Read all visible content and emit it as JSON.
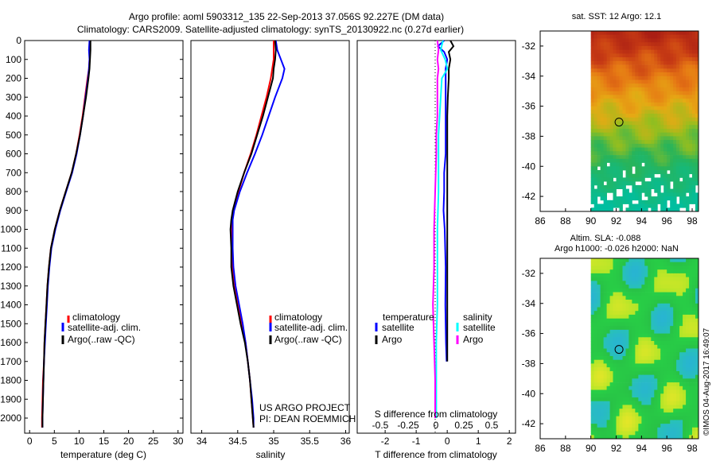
{
  "title_line1": "Argo profile: aoml 5903312_135 22-Sep-2013 37.056S 92.227E (DM data)",
  "title_line2": "Climatology: CARS2009. Satellite-adjusted climatology: synTS_20130922.nc (0.27d earlier)",
  "colors": {
    "climatology": "#ff0000",
    "satellite": "#0000ff",
    "argo": "#000000",
    "sat_sal": "#00ffff",
    "argo_sal": "#ff00ff"
  },
  "chart_data": [
    {
      "type": "line",
      "xlabel": "temperature (deg C)",
      "xlim": [
        -1,
        31
      ],
      "xticks": [
        0,
        5,
        10,
        15,
        20,
        25,
        30
      ],
      "ylim": [
        2080,
        0
      ],
      "yticks": [
        0,
        100,
        200,
        300,
        400,
        500,
        600,
        700,
        800,
        900,
        1000,
        1100,
        1200,
        1300,
        1400,
        1500,
        1600,
        1700,
        1800,
        1900,
        2000
      ],
      "legend": [
        "climatology",
        "satellite-adj. clim.",
        "Argo(..raw -QC)"
      ],
      "series": [
        {
          "name": "climatology",
          "depth": [
            0,
            50,
            100,
            150,
            200,
            300,
            400,
            500,
            600,
            700,
            800,
            900,
            1000,
            1100,
            1200,
            1300,
            1400,
            1500,
            1600,
            1700,
            1800,
            1900,
            2000,
            2050
          ],
          "values": [
            12.2,
            12.2,
            12.1,
            12.0,
            11.7,
            11.2,
            10.7,
            10.1,
            9.4,
            8.5,
            7.3,
            6.1,
            5.1,
            4.3,
            3.9,
            3.6,
            3.4,
            3.2,
            3.0,
            2.9,
            2.7,
            2.6,
            2.5,
            2.5
          ]
        },
        {
          "name": "satellite-adj. clim.",
          "depth": [
            0,
            50,
            100,
            150,
            200,
            300,
            400,
            500,
            600,
            700,
            800,
            900,
            1000,
            1100,
            1200,
            1300,
            1400,
            1500,
            1600,
            1700,
            1800,
            1900,
            2000,
            2050
          ],
          "values": [
            12.1,
            12.0,
            12.1,
            12.0,
            11.8,
            11.3,
            10.8,
            10.2,
            9.5,
            8.6,
            7.4,
            6.2,
            5.2,
            4.4,
            4.0,
            3.7,
            3.5,
            3.3,
            3.1,
            2.9,
            2.8,
            2.7,
            2.6,
            2.6
          ]
        },
        {
          "name": "Argo(..raw -QC)",
          "depth": [
            0,
            50,
            100,
            150,
            200,
            300,
            400,
            500,
            600,
            700,
            800,
            900,
            1000,
            1100,
            1200,
            1300,
            1400,
            1500,
            1600,
            1700,
            1800,
            1900,
            2000,
            2050
          ],
          "values": [
            12.3,
            12.3,
            12.2,
            12.1,
            11.9,
            11.4,
            10.8,
            10.2,
            9.4,
            8.5,
            7.3,
            6.1,
            5.1,
            4.3,
            3.9,
            3.6,
            3.4,
            3.2,
            3.0,
            2.9,
            2.8,
            2.7,
            2.6,
            2.6
          ]
        }
      ]
    },
    {
      "type": "line",
      "xlabel": "salinity",
      "xlim": [
        33.85,
        36.05
      ],
      "xticks": [
        34,
        34.5,
        35,
        35.5,
        36
      ],
      "xticklabels": [
        "34",
        "34.5",
        "35",
        "35.5",
        "36"
      ],
      "ylim": [
        2080,
        0
      ],
      "legend": [
        "climatology",
        "satellite-adj. clim.",
        "Argo(..raw -QC)"
      ],
      "annotation": [
        "US ARGO PROJECT",
        "PI: DEAN ROEMMICH"
      ],
      "series": [
        {
          "name": "climatology",
          "depth": [
            0,
            50,
            100,
            150,
            200,
            300,
            400,
            500,
            600,
            700,
            800,
            900,
            950,
            1000,
            1100,
            1200,
            1300,
            1400,
            1500,
            1600,
            1700,
            1800,
            1900,
            2000,
            2050
          ],
          "values": [
            35.0,
            35.0,
            35.0,
            34.98,
            34.96,
            34.9,
            34.83,
            34.76,
            34.68,
            34.59,
            34.51,
            34.44,
            34.42,
            34.42,
            34.42,
            34.43,
            34.46,
            34.51,
            34.56,
            34.61,
            34.64,
            34.67,
            34.69,
            34.71,
            34.72
          ]
        },
        {
          "name": "satellite-adj. clim.",
          "depth": [
            0,
            50,
            100,
            150,
            200,
            300,
            400,
            500,
            600,
            700,
            800,
            900,
            950,
            1000,
            1100,
            1200,
            1300,
            1400,
            1500,
            1600,
            1700,
            1800,
            1900,
            2000,
            2050
          ],
          "values": [
            35.03,
            35.05,
            35.1,
            35.15,
            35.12,
            35.02,
            34.93,
            34.84,
            34.74,
            34.63,
            34.53,
            34.45,
            34.43,
            34.43,
            34.43,
            34.44,
            34.47,
            34.52,
            34.57,
            34.61,
            34.64,
            34.67,
            34.7,
            34.72,
            34.72
          ]
        },
        {
          "name": "Argo(..raw -QC)",
          "depth": [
            0,
            50,
            100,
            150,
            200,
            300,
            400,
            500,
            600,
            700,
            800,
            900,
            950,
            1000,
            1100,
            1200,
            1300,
            1400,
            1500,
            1600,
            1700,
            1800,
            1900,
            2000,
            2050
          ],
          "values": [
            35.02,
            35.03,
            35.02,
            35.0,
            34.99,
            34.92,
            34.85,
            34.77,
            34.69,
            34.59,
            34.5,
            34.43,
            34.41,
            34.4,
            34.41,
            34.41,
            34.44,
            34.49,
            34.54,
            34.6,
            34.64,
            34.67,
            34.69,
            34.71,
            34.72
          ]
        }
      ]
    },
    {
      "type": "line",
      "xlabel": "T difference from climatology",
      "xlabel_top": "S difference from climatology",
      "xlim": [
        -2.9,
        2.2
      ],
      "xticks": [
        -2,
        -1,
        0,
        1,
        2
      ],
      "xticks_top": [
        -0.5,
        -0.25,
        0,
        0.25,
        0.5
      ],
      "xticklabels_top": [
        "-0.5",
        "-0.25",
        "0",
        "0.25",
        "0.5"
      ],
      "ylim": [
        2080,
        0
      ],
      "legend_headers": [
        "temperature",
        "salinity"
      ],
      "legend": [
        "satellite",
        "Argo",
        "satellite",
        "Argo"
      ],
      "series": [
        {
          "name": "temperature satellite",
          "depth": [
            0,
            30,
            60,
            100,
            150,
            200,
            300,
            400,
            500,
            600,
            700,
            800,
            900,
            1000,
            1200,
            1400,
            1600,
            1700
          ],
          "values": [
            -0.1,
            -0.3,
            -0.1,
            0.0,
            -0.05,
            -0.05,
            -0.05,
            -0.05,
            -0.05,
            -0.05,
            -0.1,
            -0.1,
            -0.12,
            -0.08,
            -0.05,
            -0.06,
            -0.04,
            -0.02
          ]
        },
        {
          "name": "temperature Argo",
          "depth": [
            0,
            30,
            60,
            100,
            150,
            200,
            300,
            400,
            500,
            600,
            700,
            800,
            900,
            1000,
            1200,
            1400,
            1600,
            1700
          ],
          "values": [
            0.1,
            0.2,
            0.05,
            0.1,
            0.05,
            0.05,
            0.02,
            0.0,
            0.0,
            0.0,
            0.0,
            0.0,
            0.0,
            0.0,
            0.0,
            0.0,
            0.0,
            0.0
          ]
        },
        {
          "name": "salinity satellite",
          "depth": [
            0,
            50,
            100,
            150,
            200,
            300,
            400,
            500,
            600,
            800,
            1000,
            1200,
            1400,
            1600,
            1800,
            2000
          ],
          "values": [
            0.07,
            0.05,
            0.09,
            0.11,
            0.06,
            0.05,
            0.04,
            0.03,
            0.03,
            0.03,
            0.02,
            0.02,
            0.02,
            0.01,
            0.01,
            0.01
          ]
        },
        {
          "name": "salinity Argo",
          "depth": [
            0,
            50,
            100,
            150,
            200,
            300,
            400,
            500,
            600,
            800,
            1000,
            1200,
            1400,
            1600,
            1800,
            2000
          ],
          "values": [
            0.02,
            0.03,
            0.02,
            0.03,
            0.02,
            0.02,
            0.02,
            0.01,
            0.01,
            0.0,
            -0.01,
            -0.01,
            -0.02,
            -0.01,
            0.0,
            0.0
          ]
        }
      ]
    },
    {
      "type": "heatmap",
      "title": "sat. SST: 12 Argo: 12.1",
      "xlim": [
        86,
        98.5
      ],
      "ylim": [
        -43,
        -31
      ],
      "xticks": [
        86,
        88,
        90,
        92,
        94,
        96,
        98
      ],
      "yticks": [
        -32,
        -34,
        -36,
        -38,
        -40,
        -42
      ],
      "marker": {
        "lon": 92.227,
        "lat": -37.056
      }
    },
    {
      "type": "heatmap",
      "title": "Altim. SLA: -0.088",
      "subtitle": "Argo h1000: -0.026 h2000: NaN",
      "xlim": [
        86,
        98.5
      ],
      "ylim": [
        -43,
        -31
      ],
      "xticks": [
        86,
        88,
        90,
        92,
        94,
        96,
        98
      ],
      "yticks": [
        -32,
        -34,
        -36,
        -38,
        -40,
        -42
      ],
      "marker": {
        "lon": 92.227,
        "lat": -37.056
      }
    }
  ],
  "footer": "©IMOS 04-Aug-2017 16:49:07"
}
